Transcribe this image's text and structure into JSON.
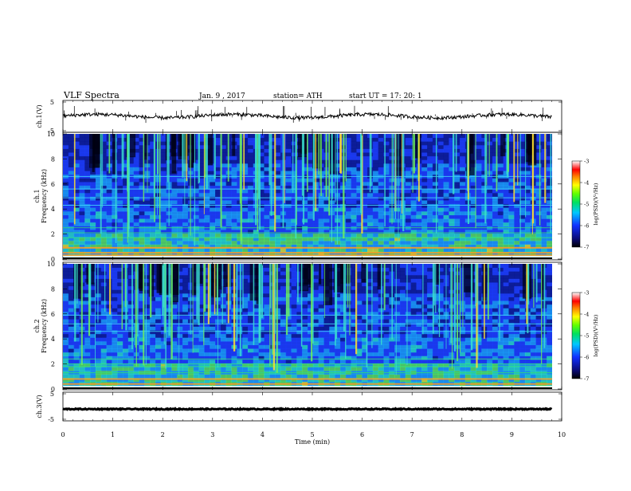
{
  "header": {
    "title": "VLF  Spectra",
    "date": "Jan.  9  , 2017",
    "station": "station= ATH",
    "start": "start  UT  =    17: 20: 1"
  },
  "chart_data": [
    {
      "type": "line",
      "panel": "ch1-waveform",
      "ylabel": "ch.1(V)",
      "yticks": [
        "5",
        "-5"
      ],
      "ylim": [
        -5,
        5
      ],
      "xlim": [
        0,
        10
      ],
      "baseline_value": 0.1,
      "note_values": [
        0.1
      ]
    },
    {
      "type": "heatmap",
      "panel": "ch1-spectrogram",
      "ylabel_line1": "ch.1",
      "ylabel_line2": "Frequency (kHz)",
      "yticks": [
        "0",
        "2",
        "4",
        "6",
        "8",
        "10"
      ],
      "ylim": [
        0,
        10
      ],
      "xlim": [
        0,
        9.8
      ],
      "bands_khz": [
        0.3,
        0.5,
        0.9,
        1.7,
        2.1,
        2.5,
        4.3,
        4.9,
        5.6,
        6.6
      ],
      "colorbar": {
        "label": "log(PSD)(V²/Hz)",
        "ticks": [
          "-3",
          "-4",
          "-5",
          "-6",
          "-7"
        ],
        "range": [
          -7,
          -3
        ]
      }
    },
    {
      "type": "heatmap",
      "panel": "ch2-spectrogram",
      "ylabel_line1": "ch.2",
      "ylabel_line2": "Frequency (kHz)",
      "yticks": [
        "0",
        "2",
        "4",
        "6",
        "8",
        "10"
      ],
      "ylim": [
        0,
        10
      ],
      "xlim": [
        0,
        9.8
      ],
      "bands_khz": [
        0.4,
        0.8,
        1.3,
        1.8,
        2.0,
        2.4,
        4.6,
        5.2,
        5.9
      ],
      "colorbar": {
        "label": "log(PSD)(V²/Hz)",
        "ticks": [
          "-3",
          "-4",
          "-5",
          "-6",
          "-7"
        ],
        "range": [
          -7,
          -3
        ]
      }
    },
    {
      "type": "line",
      "panel": "ch3-waveform",
      "ylabel": "ch.3(V)",
      "yticks": [
        "5",
        "-5"
      ],
      "ylim": [
        -5,
        5
      ],
      "xlim": [
        0,
        10
      ],
      "baseline_value": -1.0
    }
  ],
  "xaxis": {
    "label": "Time  (min)",
    "ticks": [
      "0",
      "1",
      "2",
      "3",
      "4",
      "5",
      "6",
      "7",
      "8",
      "9",
      "10"
    ],
    "range": [
      0,
      10
    ]
  },
  "colors": {
    "ink": "#000000",
    "spectro_bg": "#1a2fae",
    "background": "#ffffff"
  }
}
